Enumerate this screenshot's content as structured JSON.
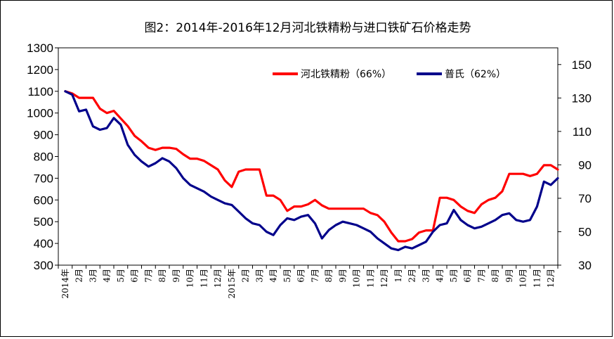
{
  "chart_data": {
    "type": "line",
    "title": "图2：2014年-2016年12月河北铁精粉与进口铁矿石价格走势",
    "xlabel": "",
    "ylabel_left": "",
    "ylabel_right": "",
    "ylim_left": [
      300,
      1300
    ],
    "ylim_right": [
      30,
      160
    ],
    "yticks_left": [
      "1300",
      "1200",
      "1100",
      "1000",
      "900",
      "800",
      "700",
      "600",
      "500",
      "400",
      "300"
    ],
    "yticks_right": [
      "150",
      "130",
      "110",
      "90",
      "70",
      "50",
      "30"
    ],
    "x_tick_labels": [
      "2014年",
      "2月",
      "3月",
      "4月",
      "5月",
      "6月",
      "7月",
      "8月",
      "9月",
      "10月",
      "11月",
      "12月",
      "2015年",
      "2月",
      "3月",
      "4月",
      "5月",
      "6月",
      "7月",
      "8月",
      "9月",
      "10月",
      "11月",
      "12月",
      "1月",
      "2月",
      "3月",
      "4月",
      "5月",
      "6月",
      "7月",
      "8月",
      "9月",
      "10月",
      "11月",
      "12月"
    ],
    "grid": false,
    "legend_position": "top-right",
    "x_unit": "month index (0 = Jan 2014, 35 = Dec 2016)",
    "series": [
      {
        "name": "河北铁精粉（66%）",
        "axis": "left",
        "color": "#ff0000",
        "x": [
          0,
          0.5,
          1,
          1.5,
          2,
          2.5,
          3,
          3.5,
          4,
          4.5,
          5,
          5.5,
          6,
          6.5,
          7,
          7.5,
          8,
          8.5,
          9,
          9.5,
          10,
          10.5,
          11,
          11.5,
          12,
          12.5,
          13,
          13.5,
          14,
          14.5,
          15,
          15.5,
          16,
          16.5,
          17,
          17.5,
          18,
          18.5,
          19,
          19.5,
          20,
          20.5,
          21,
          21.5,
          22,
          22.5,
          23,
          23.5,
          24,
          24.5,
          25,
          25.5,
          26,
          26.5,
          27,
          27.5,
          28,
          28.5,
          29,
          29.5,
          30,
          30.5,
          31,
          31.5,
          32,
          32.5,
          33,
          33.5,
          34,
          34.5,
          35,
          35.5
        ],
        "values": [
          1100,
          1090,
          1070,
          1070,
          1070,
          1020,
          1000,
          1010,
          975,
          940,
          895,
          870,
          840,
          830,
          840,
          840,
          835,
          810,
          790,
          790,
          780,
          760,
          740,
          690,
          660,
          730,
          740,
          740,
          740,
          620,
          620,
          600,
          550,
          570,
          570,
          580,
          600,
          575,
          560,
          560,
          560,
          560,
          560,
          560,
          540,
          530,
          500,
          450,
          410,
          410,
          420,
          450,
          460,
          460,
          610,
          610,
          600,
          570,
          550,
          540,
          580,
          600,
          610,
          640,
          720,
          720,
          720,
          710,
          720,
          760,
          760,
          740
        ]
      },
      {
        "name": "普氏（62%）",
        "axis": "right",
        "color": "#00008b",
        "x": [
          0,
          0.5,
          1,
          1.5,
          2,
          2.5,
          3,
          3.5,
          4,
          4.5,
          5,
          5.5,
          6,
          6.5,
          7,
          7.5,
          8,
          8.5,
          9,
          9.5,
          10,
          10.5,
          11,
          11.5,
          12,
          12.5,
          13,
          13.5,
          14,
          14.5,
          15,
          15.5,
          16,
          16.5,
          17,
          17.5,
          18,
          18.5,
          19,
          19.5,
          20,
          20.5,
          21,
          21.5,
          22,
          22.5,
          23,
          23.5,
          24,
          24.5,
          25,
          25.5,
          26,
          26.5,
          27,
          27.5,
          28,
          28.5,
          29,
          29.5,
          30,
          30.5,
          31,
          31.5,
          32,
          32.5,
          33,
          33.5,
          34,
          34.5,
          35,
          35.5
        ],
        "values": [
          134,
          132,
          122,
          123,
          113,
          111,
          112,
          118,
          114,
          102,
          96,
          92,
          89,
          91,
          94,
          92,
          88,
          82,
          78,
          76,
          74,
          71,
          69,
          67,
          66,
          62,
          58,
          55,
          54,
          50,
          48,
          54,
          58,
          57,
          59,
          60,
          55,
          46,
          51,
          54,
          56,
          55,
          54,
          52,
          50,
          46,
          43,
          40,
          39,
          41,
          40,
          42,
          44,
          50,
          54,
          55,
          63,
          57,
          54,
          52,
          53,
          55,
          57,
          60,
          61,
          57,
          56,
          57,
          65,
          80,
          78,
          82
        ]
      }
    ]
  }
}
